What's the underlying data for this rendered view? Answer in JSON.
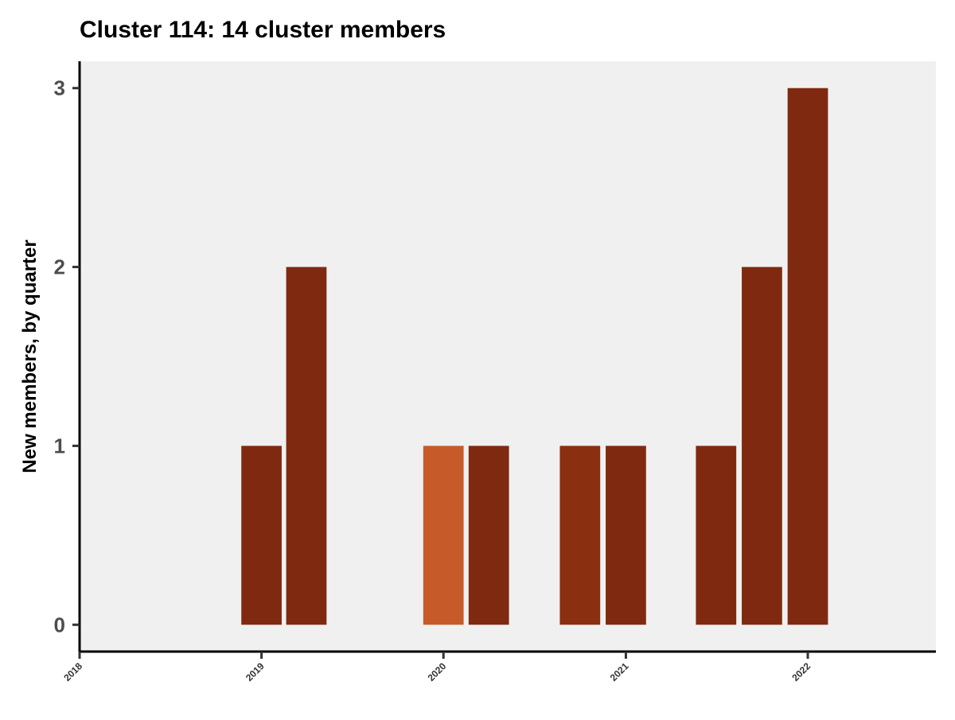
{
  "chart_data": {
    "type": "bar",
    "title": "Cluster 114: 14 cluster members",
    "xlabel": "",
    "ylabel": "New members, by quarter",
    "x_ticks": [
      "2018",
      "2019",
      "2020",
      "2021",
      "2022"
    ],
    "y_ticks": [
      "0",
      "1",
      "2",
      "3"
    ],
    "xlim": [
      "2018-01-01",
      "2022-09-15"
    ],
    "ylim": [
      -0.15,
      3.15
    ],
    "grid": false,
    "panel_background": "#f0f0f0",
    "bars": [
      {
        "quarter": "2019-Q1",
        "x": "2019-01-01",
        "value": 1,
        "color": "#7f2a10"
      },
      {
        "quarter": "2019-Q2",
        "x": "2019-04-01",
        "value": 2,
        "color": "#7f2a10"
      },
      {
        "quarter": "2020-Q1",
        "x": "2020-01-01",
        "value": 1,
        "color": "#c65b29"
      },
      {
        "quarter": "2020-Q2",
        "x": "2020-04-01",
        "value": 1,
        "color": "#7f2a10"
      },
      {
        "quarter": "2020-Q4",
        "x": "2020-10-01",
        "value": 1,
        "color": "#8a2f0f"
      },
      {
        "quarter": "2021-Q1",
        "x": "2021-01-01",
        "value": 1,
        "color": "#7f2a10"
      },
      {
        "quarter": "2021-Q3",
        "x": "2021-07-01",
        "value": 1,
        "color": "#7f2a10"
      },
      {
        "quarter": "2021-Q4",
        "x": "2021-10-01",
        "value": 2,
        "color": "#7f2a10"
      },
      {
        "quarter": "2022-Q1",
        "x": "2022-01-01",
        "value": 3,
        "color": "#7f2a10"
      }
    ]
  }
}
